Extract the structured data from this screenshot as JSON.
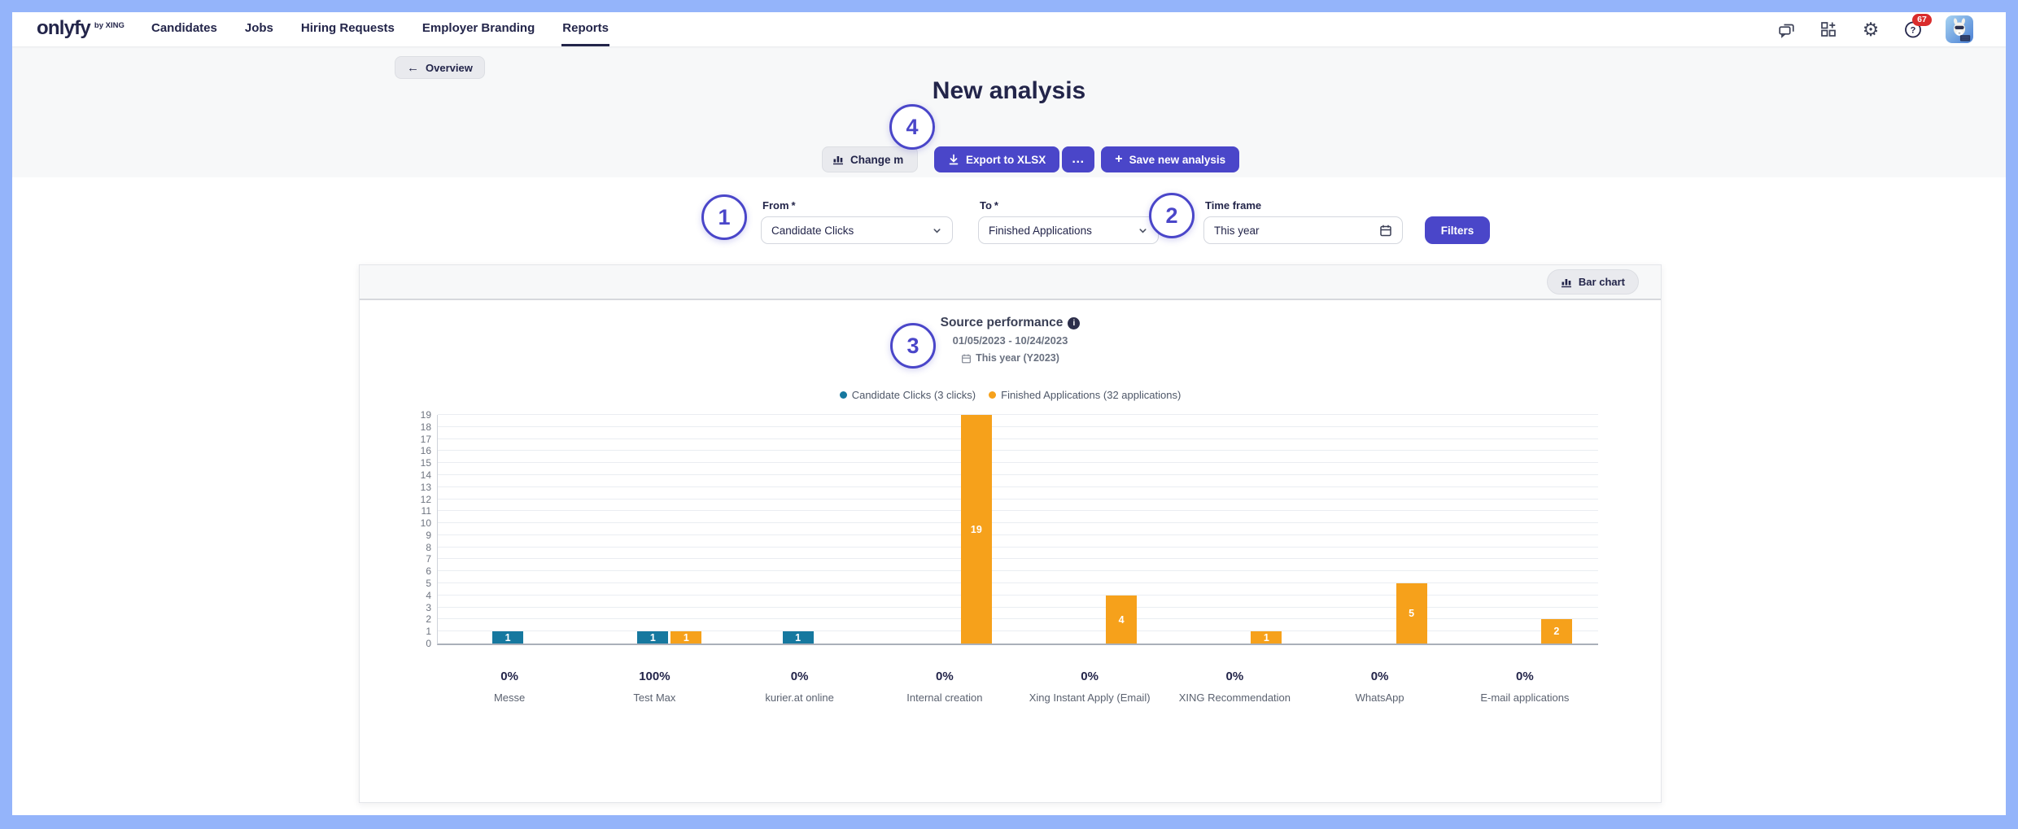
{
  "nav": {
    "logo": {
      "text": "onlyfy",
      "byline": "by XING"
    },
    "items": [
      "Candidates",
      "Jobs",
      "Hiring Requests",
      "Employer Branding",
      "Reports"
    ],
    "active_item": "Reports",
    "badge_count": "67"
  },
  "hero": {
    "back_label": "Overview",
    "title": "New analysis",
    "buttons": {
      "change": "Change m",
      "export": "Export to XLSX",
      "more": "…",
      "save": "Save new analysis"
    }
  },
  "markers": [
    "1",
    "2",
    "3",
    "4"
  ],
  "form": {
    "star": "*",
    "from": {
      "label": "From",
      "value": "Candidate Clicks"
    },
    "to": {
      "label": "To",
      "value": "Finished Applications"
    },
    "timeframe": {
      "label": "Time frame",
      "value": "This year"
    },
    "filters_label": "Filters"
  },
  "card": {
    "toggle_label": "Bar chart",
    "title": "Source performance",
    "date_range": "01/05/2023 - 10/24/2023",
    "timeframe_line": "This year (Y2023)"
  },
  "icons": {
    "back_arrow": "←",
    "gear": "⚙",
    "plus": "+",
    "info": "i",
    "help": "?"
  },
  "chart_data": {
    "type": "bar",
    "title": "Source performance",
    "categories": [
      "Messe",
      "Test Max",
      "kurier.at online",
      "Internal creation",
      "Xing Instant Apply (Email)",
      "XING Recommendation",
      "WhatsApp",
      "E-mail applications"
    ],
    "series": [
      {
        "name": "Candidate Clicks (3 clicks)",
        "color": "#16789f",
        "values": [
          1,
          1,
          1,
          0,
          0,
          0,
          0,
          0
        ]
      },
      {
        "name": "Finished Applications (32 applications)",
        "color": "#f6a11b",
        "values": [
          0,
          1,
          0,
          19,
          4,
          1,
          5,
          2
        ]
      }
    ],
    "percent_labels": [
      "0%",
      "100%",
      "0%",
      "0%",
      "0%",
      "0%",
      "0%",
      "0%"
    ],
    "ylim": [
      0,
      19
    ],
    "y_tick_step": 1,
    "grid": true,
    "legend_position": "top",
    "xlabel": "",
    "ylabel": ""
  }
}
